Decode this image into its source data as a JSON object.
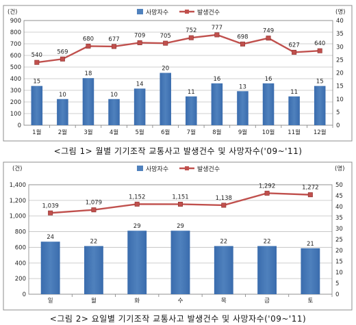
{
  "chart_data": [
    {
      "type": "bar+line",
      "caption": "<그림 1> 월별 기기조작 교통사고 발생건수 및 사망자수('09~'11)",
      "left_unit": "(건)",
      "right_unit": "(명)",
      "categories": [
        "1월",
        "2월",
        "3월",
        "4월",
        "5월",
        "6월",
        "7월",
        "8월",
        "9월",
        "10월",
        "11월",
        "12월"
      ],
      "series": [
        {
          "name": "사망자수",
          "type": "bar",
          "axis": "right",
          "color": "#4f81bd",
          "values": [
            15,
            10,
            18,
            10,
            14,
            20,
            11,
            16,
            13,
            16,
            11,
            15
          ]
        },
        {
          "name": "발생건수",
          "type": "line",
          "axis": "left",
          "color": "#c0504d",
          "values": [
            540,
            569,
            680,
            677,
            709,
            705,
            752,
            777,
            698,
            749,
            627,
            640
          ]
        }
      ],
      "left_axis": {
        "min": 0,
        "max": 900,
        "step": 100,
        "ticks": [
          "0",
          "100",
          "200",
          "300",
          "400",
          "500",
          "600",
          "700",
          "800",
          "900"
        ]
      },
      "right_axis": {
        "min": 0,
        "max": 40,
        "step": 5,
        "ticks": [
          "0",
          "5",
          "10",
          "15",
          "20",
          "25",
          "30",
          "35",
          "40"
        ]
      },
      "legend": "top-center",
      "grid": true
    },
    {
      "type": "bar+line",
      "caption": "<그림 2> 요일별 기기조작 교통사고 발생건수 및 사망자수('09~'11)",
      "left_unit": "(건)",
      "right_unit": "(명)",
      "categories": [
        "일",
        "월",
        "화",
        "수",
        "목",
        "금",
        "토"
      ],
      "series": [
        {
          "name": "사망자수",
          "type": "bar",
          "axis": "right",
          "color": "#4f81bd",
          "values": [
            24,
            22,
            29,
            29,
            22,
            22,
            21
          ]
        },
        {
          "name": "발생건수",
          "type": "line",
          "axis": "left",
          "color": "#c0504d",
          "values": [
            1039,
            1079,
            1152,
            1151,
            1138,
            1292,
            1272
          ],
          "labels": [
            "1,039",
            "1,079",
            "1,152",
            "1,151",
            "1,138",
            "1,292",
            "1,272"
          ]
        }
      ],
      "left_axis": {
        "min": 0,
        "max": 1400,
        "step": 200,
        "ticks": [
          "0",
          "200",
          "400",
          "600",
          "800",
          "1,000",
          "1,200",
          "1,400"
        ]
      },
      "right_axis": {
        "min": 0,
        "max": 50,
        "step": 5,
        "ticks": [
          "0",
          "5",
          "10",
          "15",
          "20",
          "25",
          "30",
          "35",
          "40",
          "45",
          "50"
        ]
      },
      "legend": "top-center",
      "grid": true
    }
  ]
}
